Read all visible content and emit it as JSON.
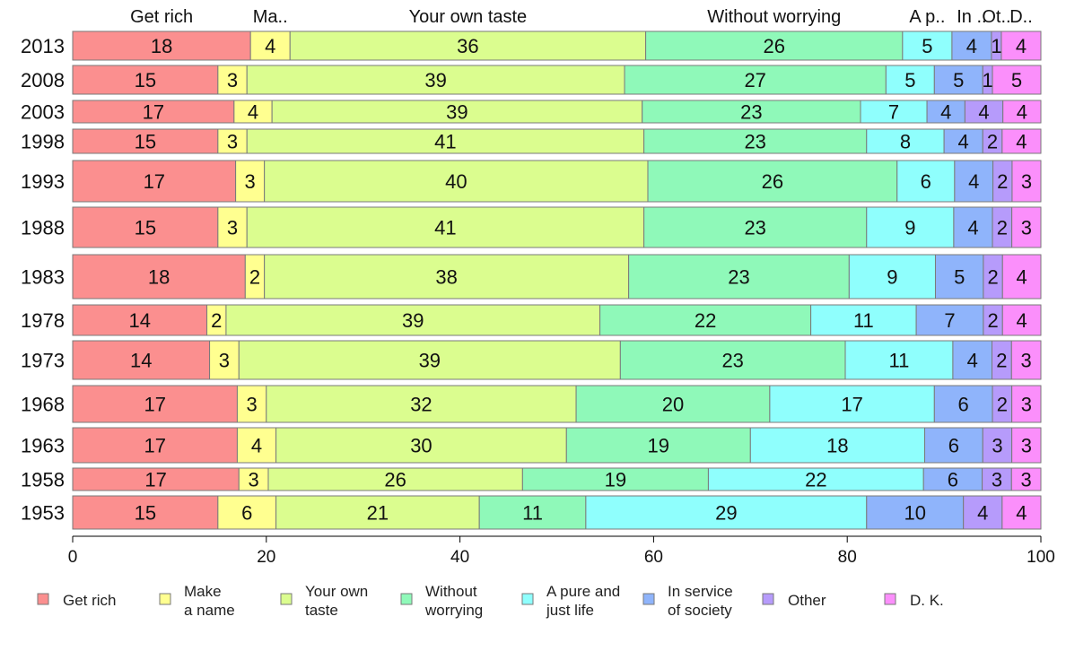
{
  "chart_data": {
    "type": "bar",
    "orientation": "horizontal",
    "stacked": true,
    "categories": [
      "2013",
      "2008",
      "2003",
      "1998",
      "1993",
      "1988",
      "1983",
      "1978",
      "1973",
      "1968",
      "1963",
      "1958",
      "1953"
    ],
    "series": [
      {
        "name": "Get rich",
        "top_label": "Get rich",
        "color": "#fb8f8f",
        "values": [
          18,
          15,
          17,
          15,
          17,
          15,
          18,
          14,
          14,
          17,
          17,
          17,
          15
        ]
      },
      {
        "name": "Make a name",
        "top_label": "Ma..",
        "color": "#ffff90",
        "values": [
          4,
          3,
          4,
          3,
          3,
          3,
          2,
          2,
          3,
          3,
          4,
          3,
          6
        ]
      },
      {
        "name": "Your own taste",
        "top_label": "Your own taste",
        "color": "#dbfd8f",
        "values": [
          36,
          39,
          39,
          41,
          40,
          41,
          38,
          39,
          39,
          32,
          30,
          26,
          21
        ]
      },
      {
        "name": "Without worrying",
        "top_label": "Without worrying",
        "color": "#8ff9b9",
        "values": [
          26,
          27,
          23,
          23,
          26,
          23,
          23,
          22,
          23,
          20,
          19,
          19,
          11
        ]
      },
      {
        "name": "A pure and just life",
        "top_label": "A p..",
        "color": "#8ffffd",
        "values": [
          5,
          5,
          7,
          8,
          6,
          9,
          9,
          11,
          11,
          17,
          18,
          22,
          29
        ]
      },
      {
        "name": "In service of society",
        "top_label": "In ..",
        "color": "#8fb4fb",
        "values": [
          4,
          5,
          4,
          4,
          4,
          4,
          5,
          7,
          4,
          6,
          6,
          6,
          10
        ]
      },
      {
        "name": "Other",
        "top_label": "Ot..",
        "color": "#b69bfb",
        "values": [
          1,
          1,
          4,
          2,
          2,
          2,
          2,
          2,
          2,
          2,
          3,
          3,
          4
        ]
      },
      {
        "name": "D. K.",
        "top_label": "D..",
        "color": "#fb8ffb",
        "values": [
          4,
          5,
          4,
          4,
          3,
          3,
          4,
          4,
          3,
          3,
          3,
          3,
          4
        ]
      }
    ],
    "xlim": [
      0,
      100
    ],
    "xticks": [
      0,
      20,
      40,
      60,
      80,
      100
    ],
    "xlabel": "",
    "ylabel": "",
    "title": "",
    "legend_position": "bottom",
    "legend": [
      {
        "lines": [
          "Get rich"
        ]
      },
      {
        "lines": [
          "Make",
          "a name"
        ]
      },
      {
        "lines": [
          "Your own",
          "taste"
        ]
      },
      {
        "lines": [
          "Without",
          "worrying"
        ]
      },
      {
        "lines": [
          "A pure and",
          "just life"
        ]
      },
      {
        "lines": [
          "In service",
          "of society"
        ]
      },
      {
        "lines": [
          "Other"
        ]
      },
      {
        "lines": [
          "D. K."
        ]
      }
    ]
  }
}
